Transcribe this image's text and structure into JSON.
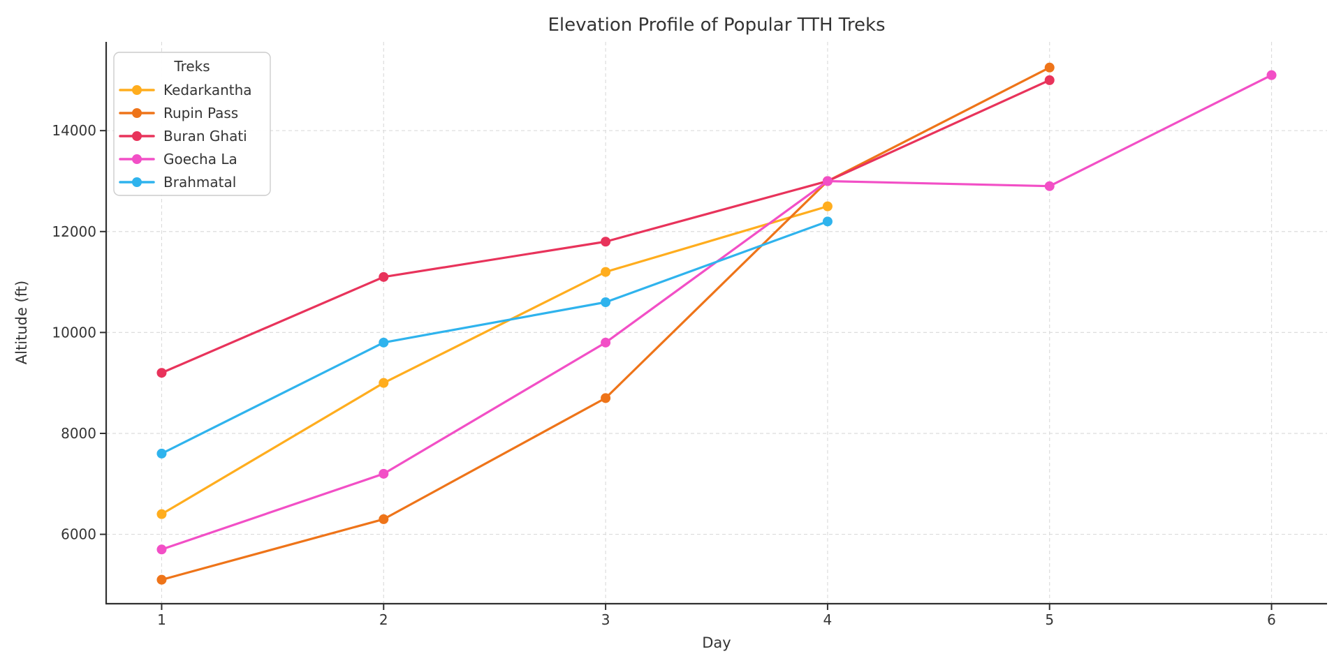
{
  "chart_data": {
    "type": "line",
    "title": "Elevation Profile of Popular TTH Treks",
    "xlabel": "Day",
    "ylabel": "Altitude (ft)",
    "legend_title": "Treks",
    "legend_position": "upper left",
    "grid": true,
    "grid_style": "dashed",
    "grid_color": "#dcdcdc",
    "spine_color": "#303030",
    "text_color": "#343434",
    "x_ticks": [
      1,
      2,
      3,
      4,
      5,
      6
    ],
    "y_ticks": [
      6000,
      8000,
      10000,
      12000,
      14000
    ],
    "xlim": [
      0.75,
      6.25
    ],
    "ylim": [
      4625,
      15759
    ],
    "series": [
      {
        "name": "Kedarkantha",
        "color": "#FFAD1E",
        "x": [
          1,
          2,
          3,
          4
        ],
        "values": [
          6400,
          9000,
          11200,
          12500
        ]
      },
      {
        "name": "Rupin Pass",
        "color": "#EE7419",
        "x": [
          1,
          2,
          3,
          4,
          5
        ],
        "values": [
          5100,
          6300,
          8700,
          13000,
          15250
        ]
      },
      {
        "name": "Buran Ghati",
        "color": "#E8335B",
        "x": [
          1,
          2,
          3,
          4,
          5
        ],
        "values": [
          9200,
          11100,
          11800,
          13000,
          15000
        ]
      },
      {
        "name": "Goecha La",
        "color": "#F24FC6",
        "x": [
          1,
          2,
          3,
          4,
          5,
          6
        ],
        "values": [
          5700,
          7200,
          9800,
          13000,
          12900,
          15100
        ]
      },
      {
        "name": "Brahmatal",
        "color": "#2FB3ED",
        "x": [
          1,
          2,
          3,
          4
        ],
        "values": [
          7600,
          9800,
          10600,
          12200
        ]
      }
    ]
  }
}
